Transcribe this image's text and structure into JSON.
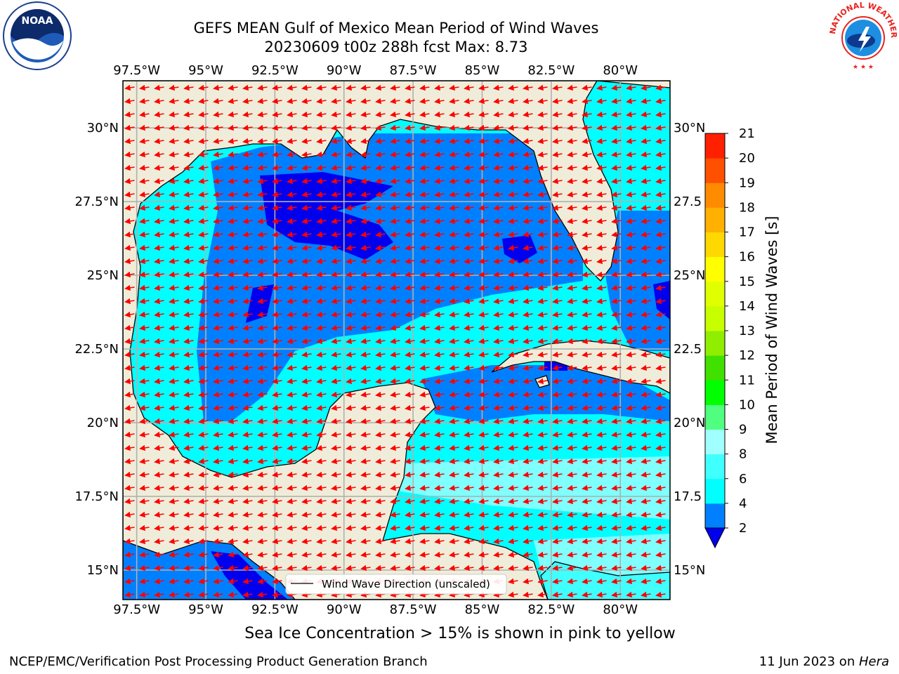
{
  "title": {
    "line1": "GEFS MEAN Gulf of Mexico Mean Period of Wind Waves",
    "line2": "20230609 t00z 288h fcst   Max: 8.73"
  },
  "map": {
    "lon_ticks": [
      "97.5°W",
      "95°W",
      "92.5°W",
      "90°W",
      "87.5°W",
      "85°W",
      "82.5°W",
      "80°W"
    ],
    "lat_ticks_left": [
      "30°N",
      "27.5°N",
      "25°N",
      "22.5°N",
      "20°N",
      "17.5°N",
      "15°N"
    ],
    "lat_ticks_right": [
      "30°N",
      "27.5",
      "25°N",
      "22.5",
      "20°N",
      "17.5",
      "15°N"
    ],
    "extent": {
      "lon_min": -98,
      "lon_max": -78.2,
      "lat_min": 14,
      "lat_max": 31.6
    },
    "legend_label": "Wind Wave Direction (unscaled)",
    "land_color": "#efedd9",
    "grid": true
  },
  "colorbar": {
    "label": "Mean Period of Wind Waves [s]",
    "ticks": [
      "2",
      "4",
      "6",
      "8",
      "9",
      "10",
      "11",
      "12",
      "13",
      "14",
      "15",
      "16",
      "17",
      "18",
      "19",
      "20",
      "21"
    ],
    "colors": [
      "#0080ff",
      "#00ffff",
      "#40ffff",
      "#a0ffff",
      "#50ff80",
      "#00ff00",
      "#40e000",
      "#90ee00",
      "#c8ff00",
      "#e0ff00",
      "#ffff00",
      "#ffd800",
      "#ffb000",
      "#ff8c00",
      "#ff5000",
      "#ff2000",
      "#ff0000"
    ],
    "under_color": "#0000ee"
  },
  "ice_note": "Sea Ice Concentration > 15% is shown in pink to yellow",
  "footer": {
    "left": "NCEP/EMC/Verification Post Processing Product Generation Branch",
    "date": "11 Jun 2023 on ",
    "host": "Hera"
  },
  "logos": {
    "left": "NOAA",
    "right": "NATIONAL WEATHER SERVICE"
  }
}
